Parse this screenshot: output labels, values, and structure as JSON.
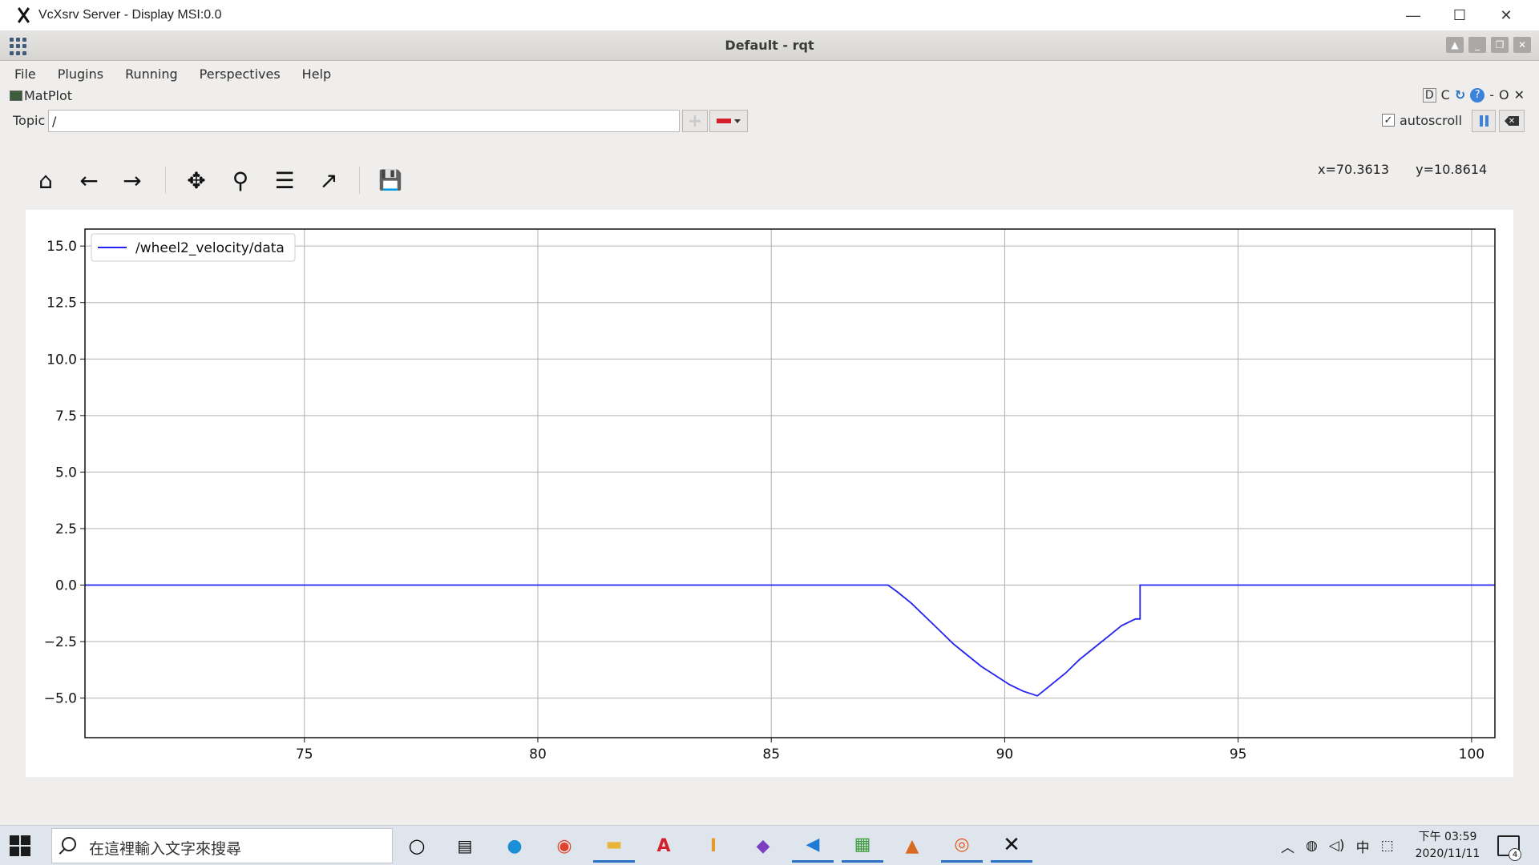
{
  "outer_window": {
    "title": "VcXsrv Server - Display MSI:0.0",
    "minimize": "—",
    "maximize": "☐",
    "close": "✕"
  },
  "rqt": {
    "title": "Default - rqt"
  },
  "menu": [
    "File",
    "Plugins",
    "Running",
    "Perspectives",
    "Help"
  ],
  "plugin": {
    "name": "MatPlot",
    "right_icons": {
      "d": "D",
      "c": "C",
      "reload": "↻",
      "help": "?",
      "dash": "-",
      "o": "O",
      "x": "✕"
    }
  },
  "topic": {
    "label": "Topic",
    "value": "/",
    "add": "+",
    "autoscroll_label": "autoscroll",
    "autoscroll_checked": true,
    "check_mark": "✓"
  },
  "toolbar": {
    "icons": [
      "home-icon",
      "back-arrow-icon",
      "forward-arrow-icon",
      "pan-icon",
      "zoom-icon",
      "subplots-config-icon",
      "edit-axes-icon",
      "save-icon"
    ],
    "glyphs": {
      "home": "⌂",
      "back": "←",
      "forward": "→",
      "pan": "✥",
      "zoom": "⚲",
      "config": "☰",
      "edit": "↗",
      "save": "💾"
    }
  },
  "coords": {
    "x": "x=70.3613",
    "y": "y=10.8614"
  },
  "chart_data": {
    "type": "line",
    "title": "",
    "xlabel": "",
    "ylabel": "",
    "xlim": [
      70.3,
      100.5
    ],
    "ylim": [
      -6.75,
      15.75
    ],
    "xticks": [
      75,
      80,
      85,
      90,
      95,
      100
    ],
    "xtick_labels": [
      "75",
      "80",
      "85",
      "90",
      "95",
      "100"
    ],
    "yticks": [
      15.0,
      12.5,
      10.0,
      7.5,
      5.0,
      2.5,
      0.0,
      -2.5,
      -5.0
    ],
    "ytick_labels": [
      "15.0",
      "12.5",
      "10.0",
      "7.5",
      "5.0",
      "2.5",
      "0.0",
      "−2.5",
      "−5.0"
    ],
    "grid": true,
    "legend_position": "top-left",
    "series": [
      {
        "name": "/wheel2_velocity/data",
        "color": "#2222ee",
        "x": [
          70.3,
          87.5,
          87.7,
          88.0,
          88.3,
          88.6,
          88.9,
          89.2,
          89.5,
          89.8,
          90.1,
          90.4,
          90.7,
          91.0,
          91.3,
          91.6,
          91.9,
          92.2,
          92.5,
          92.8,
          92.9,
          92.9,
          100.5
        ],
        "y": [
          0.0,
          0.0,
          -0.3,
          -0.8,
          -1.4,
          -2.0,
          -2.6,
          -3.1,
          -3.6,
          -4.0,
          -4.4,
          -4.7,
          -4.9,
          -4.4,
          -3.9,
          -3.3,
          -2.8,
          -2.3,
          -1.8,
          -1.5,
          -1.5,
          0.0,
          0.0
        ]
      }
    ]
  },
  "taskbar": {
    "search_placeholder": "在這裡輸入文字來搜尋",
    "tray_ime": "中",
    "clock_ampm_time": "下午 03:59",
    "clock_date": "2020/11/11",
    "notif_count": "4",
    "apps": [
      "task-view-icon",
      "taskbar-view-icon",
      "edge-icon",
      "chrome-icon",
      "file-explorer-icon",
      "acrobat-icon",
      "inkscape-icon",
      "visual-studio-icon",
      "vscode-icon",
      "photo-editor-icon",
      "matlab-icon",
      "ubuntu-icon",
      "vcxsrv-icon"
    ]
  },
  "colors": {
    "series_blue": "#2222ee",
    "grid": "#b0b0b0",
    "taskbar_bg": "#dfe5ec",
    "accent": "#2b6fc4"
  }
}
